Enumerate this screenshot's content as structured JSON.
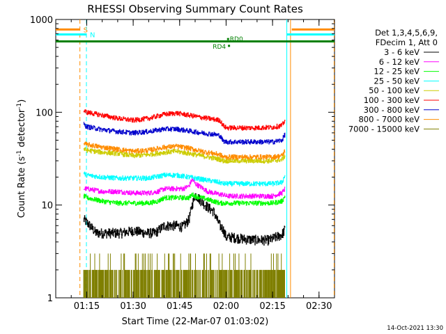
{
  "chart_data": {
    "type": "line",
    "title": "RHESSI Observing Summary Count Rates",
    "xlabel": "Start Time (22-Mar-07 01:03:02)",
    "ylabel_main": "Count Rate (s",
    "ylabel_sup1": "-1",
    "ylabel_mid": " detector",
    "ylabel_sup2": "-1",
    "ylabel_end": ")",
    "yscale": "log",
    "xlim_min": [
      65,
      155
    ],
    "ylim": [
      1,
      1000
    ],
    "x_ticks": [
      {
        "value": 75,
        "label": "01:15"
      },
      {
        "value": 90,
        "label": "01:30"
      },
      {
        "value": 105,
        "label": "01:45"
      },
      {
        "value": 120,
        "label": "02:00"
      },
      {
        "value": 135,
        "label": "02:15"
      },
      {
        "value": 150,
        "label": "02:30"
      }
    ],
    "y_ticks": [
      {
        "value": 1,
        "label": "1"
      },
      {
        "value": 10,
        "label": "10"
      },
      {
        "value": 100,
        "label": "100"
      },
      {
        "value": 1000,
        "label": "1000"
      }
    ],
    "legend_position": "right",
    "legend_header": [
      "Det 1,3,4,5,6,9,",
      "FDecim 1, Att 0"
    ],
    "series": [
      {
        "name": "3 - 6 keV",
        "color": "#000000",
        "x": [
          74,
          75,
          76,
          78,
          82,
          86,
          90,
          94,
          97,
          98,
          100,
          102,
          104,
          106,
          108,
          109,
          110,
          112,
          114,
          116,
          117,
          118,
          119,
          120,
          122,
          126,
          130,
          134,
          136,
          138,
          139
        ],
        "y": [
          7,
          6.5,
          6,
          5,
          5,
          5,
          5.3,
          5,
          5,
          5.3,
          6,
          6,
          6,
          5.8,
          7,
          10,
          13,
          11,
          9.5,
          8.5,
          7,
          6,
          5.5,
          4.5,
          4.5,
          4.3,
          4.2,
          4.2,
          4.5,
          4.8,
          5.5
        ]
      },
      {
        "name": "6 - 12 keV",
        "color": "#ff00ff",
        "x": [
          74,
          75,
          80,
          85,
          90,
          95,
          98,
          100,
          104,
          106,
          108,
          109,
          110,
          112,
          114,
          116,
          118,
          119,
          120,
          125,
          130,
          135,
          138,
          139
        ],
        "y": [
          15,
          15,
          14,
          14,
          13.5,
          13.5,
          14,
          15,
          15,
          15,
          16,
          19,
          17,
          15.5,
          14,
          13.5,
          13,
          13,
          12.5,
          12.5,
          12.5,
          12.5,
          13.5,
          15
        ]
      },
      {
        "name": "12 - 25 keV",
        "color": "#00ff00",
        "x": [
          74,
          75,
          80,
          85,
          90,
          95,
          98,
          100,
          104,
          108,
          109,
          110,
          112,
          116,
          118,
          120,
          125,
          130,
          135,
          138,
          139
        ],
        "y": [
          12.5,
          12,
          11,
          10.5,
          10.5,
          10.5,
          11,
          12,
          12,
          12,
          13,
          12.5,
          12,
          11,
          10.5,
          10.5,
          10.5,
          10.5,
          10.5,
          11,
          12.5
        ]
      },
      {
        "name": "25 - 50 keV",
        "color": "#00ffff",
        "x": [
          74,
          75,
          80,
          85,
          90,
          95,
          100,
          104,
          108,
          112,
          116,
          118,
          119,
          120,
          125,
          130,
          135,
          138,
          139
        ],
        "y": [
          22,
          21,
          20,
          19.5,
          19.5,
          19.5,
          21,
          21,
          20,
          19,
          18,
          17.5,
          17,
          17,
          17,
          17,
          17,
          17.5,
          21
        ]
      },
      {
        "name": "50 - 100 keV",
        "color": "#cccc00",
        "x": [
          74,
          75,
          80,
          85,
          90,
          95,
          100,
          104,
          108,
          112,
          116,
          118,
          119,
          120,
          125,
          130,
          135,
          138,
          139
        ],
        "y": [
          40,
          39,
          37,
          36,
          34,
          35,
          37,
          38,
          36,
          34,
          32,
          31,
          30,
          30,
          30,
          30,
          30,
          31,
          34
        ]
      },
      {
        "name": "100 - 300 keV",
        "color": "#ff0000",
        "x": [
          74,
          75,
          80,
          85,
          90,
          95,
          100,
          104,
          108,
          112,
          116,
          118,
          119,
          120,
          125,
          130,
          135,
          138,
          139
        ],
        "y": [
          104,
          100,
          93,
          86,
          82,
          86,
          95,
          98,
          93,
          88,
          84,
          82,
          72,
          68,
          68,
          68,
          69,
          72,
          82
        ]
      },
      {
        "name": "300 - 800 keV",
        "color": "#0000cc",
        "x": [
          74,
          75,
          80,
          85,
          90,
          95,
          100,
          104,
          108,
          112,
          116,
          118,
          119,
          120,
          125,
          130,
          135,
          138,
          139
        ],
        "y": [
          74,
          70,
          65,
          62,
          60,
          62,
          66,
          66,
          63,
          60,
          58,
          56,
          49,
          48,
          48,
          48,
          48,
          50,
          58
        ]
      },
      {
        "name": "800 - 7000 keV",
        "color": "#ff8c00",
        "x": [
          74,
          75,
          80,
          85,
          90,
          95,
          100,
          104,
          108,
          112,
          116,
          118,
          119,
          120,
          125,
          130,
          135,
          138,
          139
        ],
        "y": [
          46,
          45,
          42,
          40,
          38,
          39,
          42,
          43,
          41,
          38,
          36,
          35,
          33,
          33,
          33,
          33,
          33,
          34,
          39
        ]
      },
      {
        "name": "7000 - 15000 keV",
        "color": "#7f7f00",
        "x": [
          74,
          76,
          78,
          80,
          82,
          84,
          86,
          88,
          90,
          92,
          94,
          96,
          98,
          100,
          102,
          104,
          106,
          108,
          110,
          112,
          114,
          116,
          118,
          120,
          122,
          124,
          126,
          128,
          130,
          132,
          134,
          136,
          138,
          139
        ],
        "y": [
          2,
          1,
          2,
          1,
          2,
          1,
          2,
          2,
          1,
          2,
          1,
          2,
          1,
          2,
          2,
          3,
          2,
          2,
          1,
          2,
          1,
          2,
          2,
          1,
          2,
          1,
          2,
          2,
          1,
          2,
          1,
          2,
          2,
          2
        ]
      }
    ],
    "markers": {
      "vertical_lines": [
        {
          "x": 72.8,
          "color": "#ff8c00",
          "dashed": true
        },
        {
          "x": 74.9,
          "color": "#00ffff",
          "dashed": true
        },
        {
          "x": 139.6,
          "color": "#00ffff",
          "dashed": false
        },
        {
          "x": 140.8,
          "color": "#ff8c00",
          "dashed": false
        },
        {
          "x": 154.9,
          "color": "#00ffff",
          "dashed": true
        },
        {
          "x": 155.2,
          "color": "#ff8c00",
          "dashed": true
        }
      ],
      "saa": {
        "label": "S",
        "color": "#ff8c00",
        "segments": [
          [
            65,
            72.8
          ],
          [
            141.2,
            155
          ]
        ],
        "y": 780
      },
      "night": {
        "label": "N",
        "color": "#00ffff",
        "segments": [
          [
            65,
            74.9
          ],
          [
            139.7,
            155
          ]
        ],
        "y": 690
      },
      "decim": {
        "color": "#008000",
        "segments": [
          [
            65,
            155
          ]
        ],
        "y": 580
      },
      "rd0": {
        "label": "RD0",
        "color": "#008000",
        "x": 121.2,
        "y": 615
      },
      "rd4": {
        "label": "RD4",
        "color": "#008000",
        "x": 120.6,
        "y": 520
      }
    }
  },
  "timestamp": "14-Oct-2021 13:30"
}
